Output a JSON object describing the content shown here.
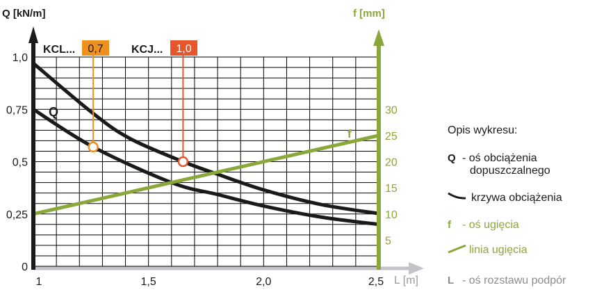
{
  "colors": {
    "axis_q": "#1a1a1a",
    "axis_f": "#8aa83a",
    "axis_l": "#c4c4c8",
    "grid": "#000000",
    "marker_kcl": "#f0901e",
    "marker_kcj": "#e8552a",
    "curve": "#1a1a1a",
    "deflection_line": "#8aa83a",
    "legend_l": "#8c8c8c"
  },
  "chart_data": {
    "type": "line",
    "xlabel": "L [m]",
    "ylabel": "Q [kN/m]",
    "y2label": "f [mm]",
    "xlim": [
      1,
      2.5
    ],
    "ylim": [
      0,
      1.0
    ],
    "y2lim": [
      0,
      40
    ],
    "grid": true,
    "x_ticks": [
      {
        "v": 1,
        "label": "1"
      },
      {
        "v": 1.5,
        "label": "1,5"
      },
      {
        "v": 2.0,
        "label": "2,0"
      },
      {
        "v": 2.5,
        "label": "2,5"
      }
    ],
    "y_ticks": [
      {
        "v": 0,
        "label": "0"
      },
      {
        "v": 0.25,
        "label": "0,25"
      },
      {
        "v": 0.5,
        "label": "0,5"
      },
      {
        "v": 0.75,
        "label": "0,75"
      },
      {
        "v": 1.0,
        "label": "1,0"
      }
    ],
    "y2_ticks": [
      {
        "v": 5,
        "label": "5"
      },
      {
        "v": 10,
        "label": "10"
      },
      {
        "v": 15,
        "label": "15"
      },
      {
        "v": 20,
        "label": "20"
      },
      {
        "v": 25,
        "label": "25"
      },
      {
        "v": 30,
        "label": "30"
      }
    ],
    "series": [
      {
        "name": "KCJ",
        "axis": "Q",
        "points": [
          [
            1.0,
            0.97
          ],
          [
            1.26,
            0.73
          ],
          [
            1.42,
            0.61
          ],
          [
            1.65,
            0.5
          ],
          [
            1.8,
            0.44
          ],
          [
            2.0,
            0.365
          ],
          [
            2.25,
            0.295
          ],
          [
            2.5,
            0.252
          ]
        ]
      },
      {
        "name": "KCL",
        "axis": "Q",
        "label": "Q",
        "points": [
          [
            1.0,
            0.75
          ],
          [
            1.26,
            0.57
          ],
          [
            1.6,
            0.4
          ],
          [
            1.8,
            0.343
          ],
          [
            2.0,
            0.288
          ],
          [
            2.25,
            0.235
          ],
          [
            2.5,
            0.2
          ]
        ]
      },
      {
        "axis": "f",
        "label": "f",
        "points": [
          [
            1.0,
            10
          ],
          [
            2.5,
            25
          ]
        ]
      }
    ],
    "markers": [
      {
        "prefix": "KCL...",
        "value_label": "0,7",
        "L": 1.26,
        "Q": 0.57,
        "color_key": "marker_kcl"
      },
      {
        "prefix": "KCJ...",
        "value_label": "1,0",
        "L": 1.65,
        "Q": 0.5,
        "color_key": "marker_kcj"
      }
    ]
  },
  "legend": {
    "title": "Opis wykresu:",
    "q_symbol": "Q",
    "q_text_1": "- oś obciążenia",
    "q_text_2": "dopuszczalnego",
    "curve_text": "krzywa obciążenia",
    "f_symbol": "f",
    "f_text": "- oś ugięcia",
    "line_text": "linia ugięcia",
    "l_symbol": "L",
    "l_text": "- oś rozstawu podpór"
  }
}
